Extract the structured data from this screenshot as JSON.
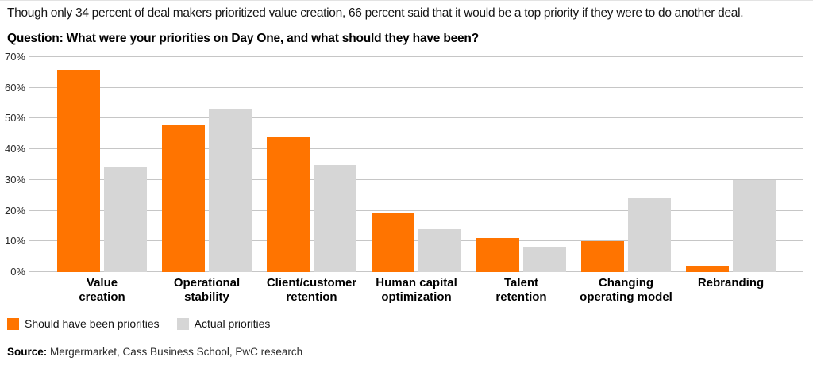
{
  "header": {
    "intro": "Though only 34 percent of deal makers prioritized value creation, 66 percent said that it would be a top priority if they were to do another deal.",
    "question": "Question: What were your priorities on Day One, and what should they have been?"
  },
  "chart_data": {
    "type": "bar",
    "categories": [
      "Value\ncreation",
      "Operational\nstability",
      "Client/customer\nretention",
      "Human capital\noptimization",
      "Talent\nretention",
      "Changing\noperating model",
      "Rebranding"
    ],
    "series": [
      {
        "name": "Should have been priorities",
        "color": "#FF7400",
        "values": [
          66,
          48,
          44,
          19,
          11,
          10,
          2
        ]
      },
      {
        "name": "Actual priorities",
        "color": "#D6D6D6",
        "values": [
          34,
          53,
          35,
          14,
          8,
          24,
          30
        ]
      }
    ],
    "ylim": [
      0,
      70
    ],
    "ytick_step": 10,
    "ytick_suffix": "%",
    "grid": true,
    "gridline_color": "#C6C6C6",
    "legend_position": "bottom-left"
  },
  "source": {
    "label": "Source:",
    "text": "Mergermarket, Cass Business School, PwC research"
  }
}
